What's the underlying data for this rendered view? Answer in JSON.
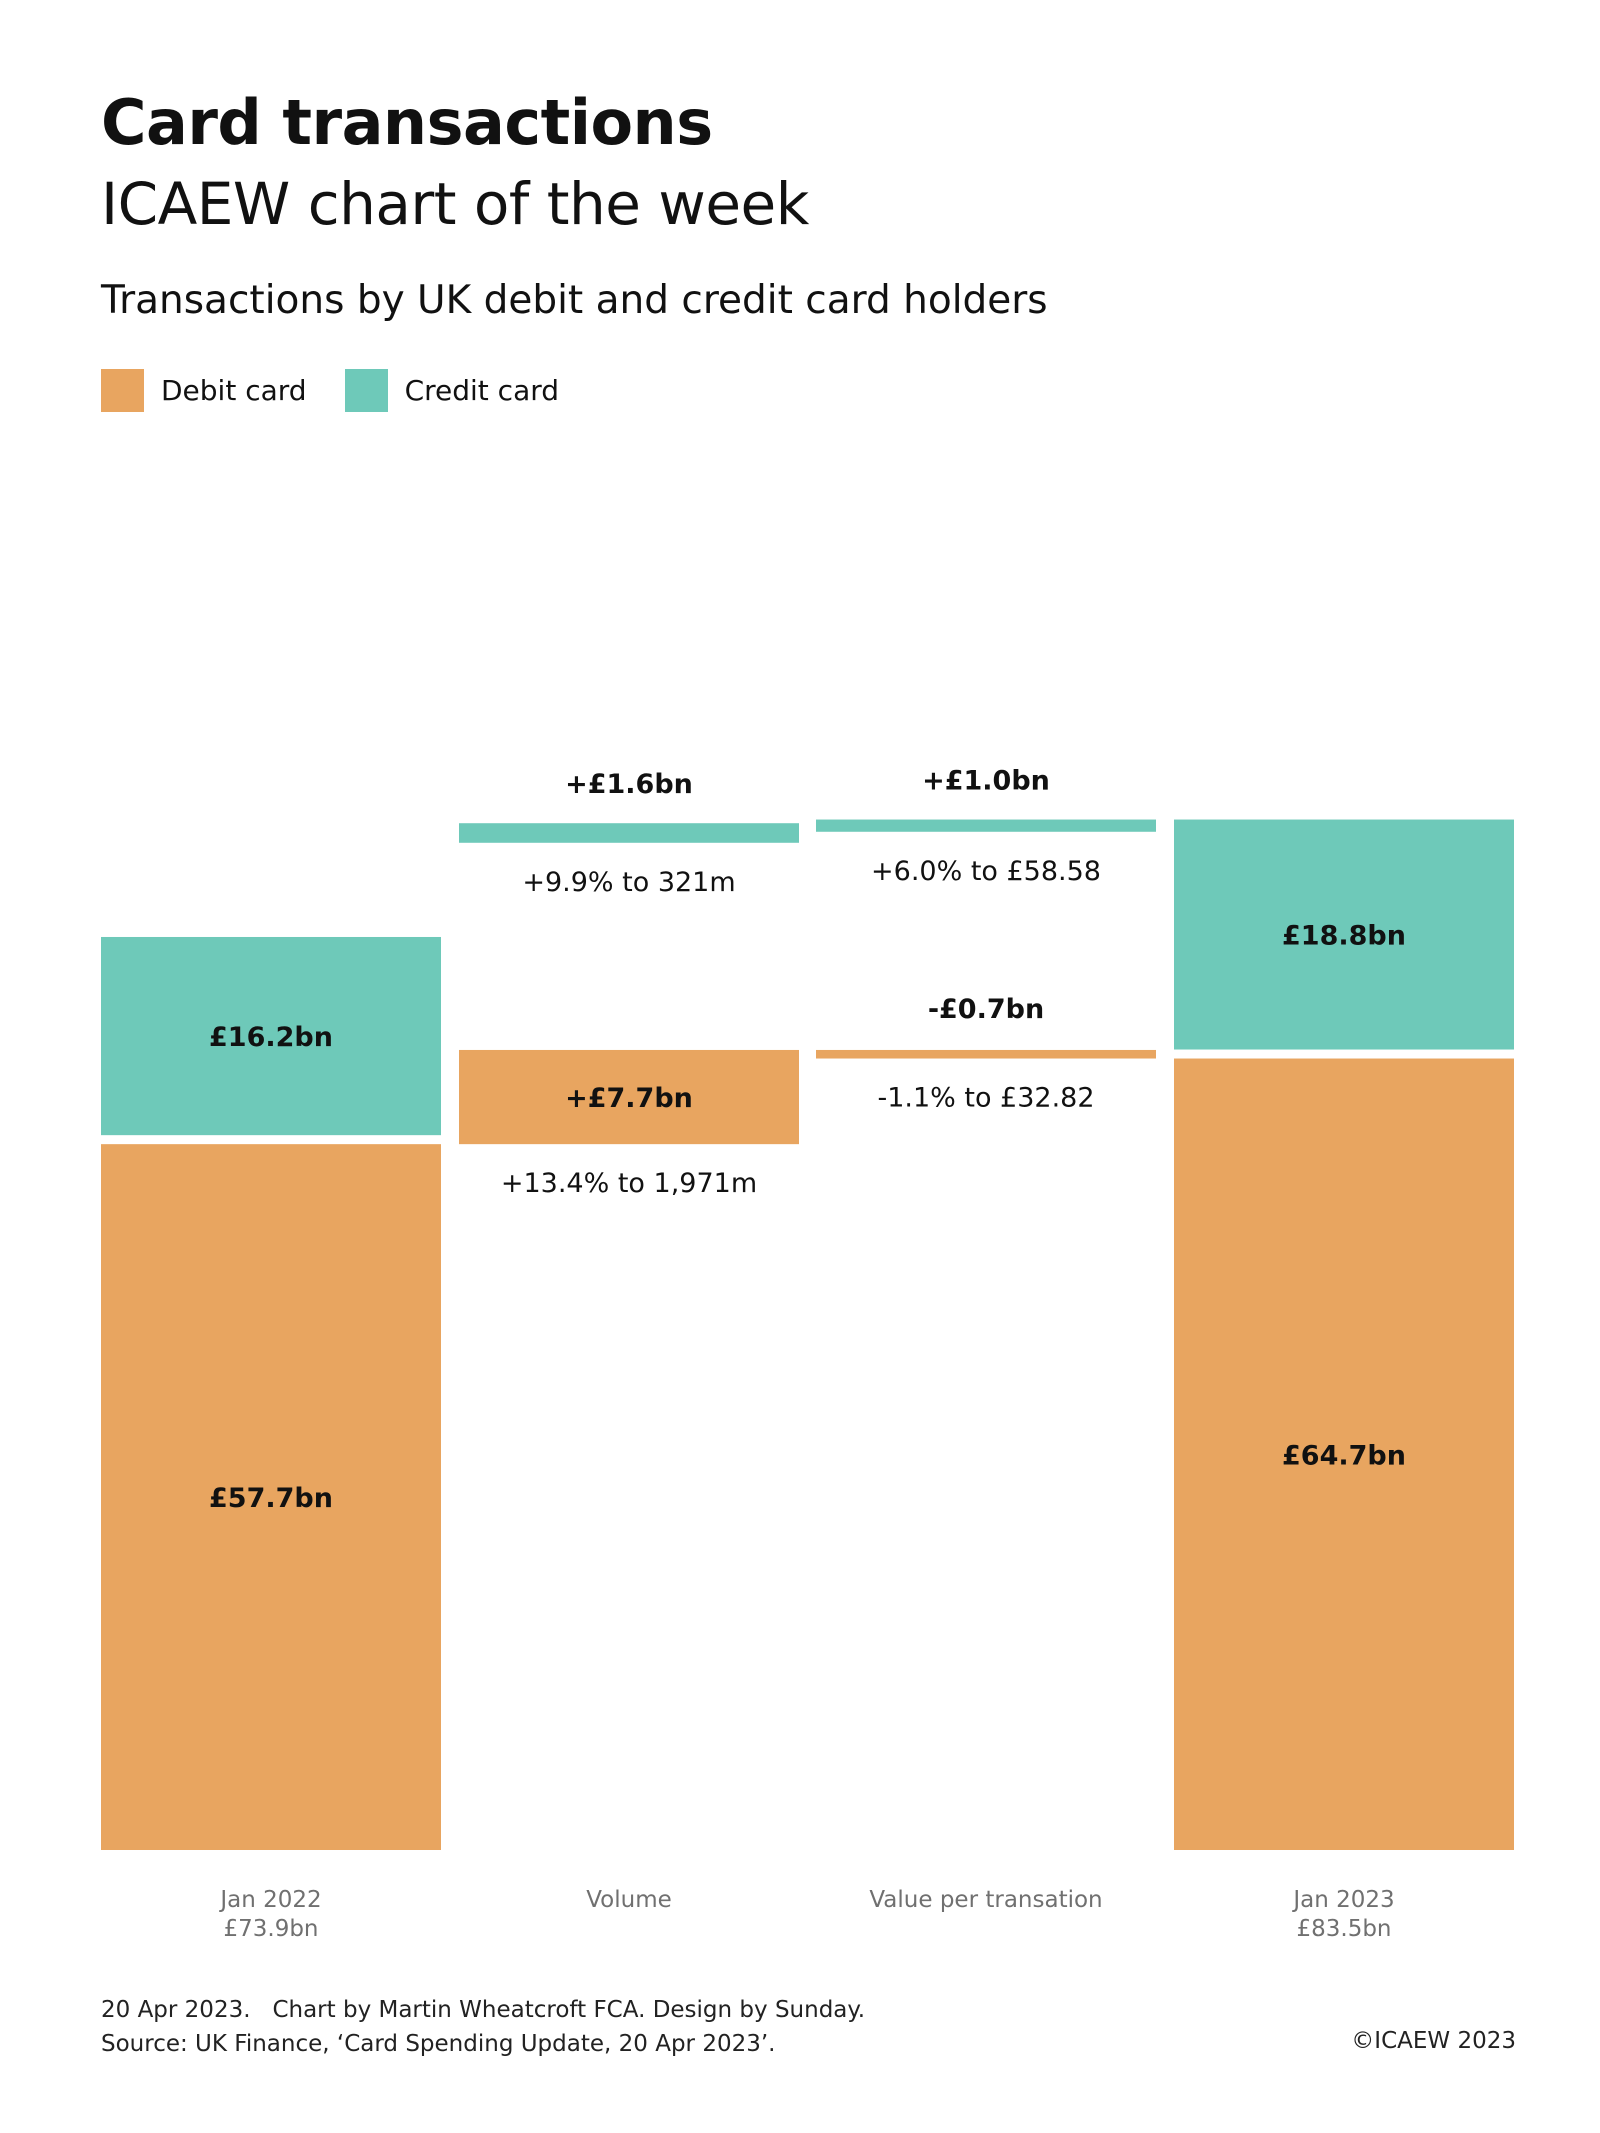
{
  "header": {
    "title": "Card transactions",
    "subtitle": "ICAEW chart of the week",
    "chart_subtitle": "Transactions by UK debit and credit card holders"
  },
  "colors": {
    "debit": "#E8A560",
    "credit": "#6EC9B9",
    "label_dark": "#111111",
    "axis_text": "#707070"
  },
  "legend": [
    {
      "label": "Debit card",
      "color_key": "debit"
    },
    {
      "label": "Credit card",
      "color_key": "credit"
    }
  ],
  "chart_data": {
    "type": "bar",
    "subtype": "waterfall",
    "unit": "£bn",
    "ylim": [
      0,
      103
    ],
    "grid": false,
    "legend_position": "top-left",
    "columns": [
      {
        "kind": "total",
        "label_line1": "Jan 2022",
        "label_line2": "£73.9bn",
        "segments": [
          {
            "series": "debit",
            "value": 57.7,
            "label": "£57.7bn"
          },
          {
            "series": "credit",
            "value": 16.2,
            "label": "£16.2bn"
          }
        ]
      },
      {
        "kind": "change",
        "label_line1": "Volume",
        "segments": [
          {
            "series": "debit",
            "value": 7.7,
            "label": "+£7.7bn",
            "note": "+13.4% to 1,971m"
          },
          {
            "series": "credit",
            "value": 1.6,
            "label": "+£1.6bn",
            "note": "+9.9% to 321m"
          }
        ]
      },
      {
        "kind": "change",
        "label_line1": "Value per transation",
        "segments": [
          {
            "series": "debit",
            "value": -0.7,
            "label": "-£0.7bn",
            "note": "-1.1% to £32.82"
          },
          {
            "series": "credit",
            "value": 1.0,
            "label": "+£1.0bn",
            "note": "+6.0% to £58.58"
          }
        ]
      },
      {
        "kind": "total",
        "label_line1": "Jan 2023",
        "label_line2": "£83.5bn",
        "segments": [
          {
            "series": "debit",
            "value": 64.7,
            "label": "£64.7bn"
          },
          {
            "series": "credit",
            "value": 18.8,
            "label": "£18.8bn"
          }
        ]
      }
    ]
  },
  "footer": {
    "line1": "20 Apr 2023.   Chart by Martin Wheatcroft FCA. Design by Sunday.",
    "line2": "Source: UK Finance, ‘Card Spending Update, 20 Apr 2023’.",
    "copyright": "©ICAEW 2023"
  }
}
